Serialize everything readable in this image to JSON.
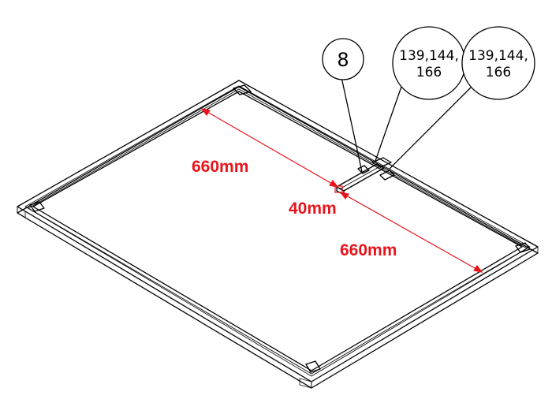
{
  "callouts": [
    {
      "id": "balloon-8",
      "lines": [
        "8"
      ]
    },
    {
      "id": "balloon-a",
      "lines": [
        "139,144,",
        "166"
      ]
    },
    {
      "id": "balloon-b",
      "lines": [
        "139,144,",
        "166"
      ]
    }
  ],
  "dimensions": {
    "upper_length": "660mm",
    "gap": "40mm",
    "lower_length": "660mm"
  },
  "colors": {
    "dimension": "#e8141b",
    "linework": "#000000",
    "background": "#ffffff"
  }
}
